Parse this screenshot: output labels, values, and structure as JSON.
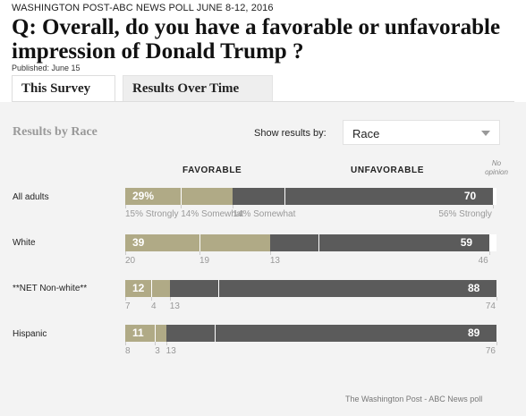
{
  "kicker": "WASHINGTON POST-ABC NEWS POLL JUNE 8-12, 2016",
  "headline": "Q: Overall, do you have a favorable or unfavorable impression of Donald Trump ?",
  "published": "Published: June 15",
  "tabs": [
    {
      "label": "This Survey",
      "active": true
    },
    {
      "label": "Results Over Time",
      "active": false
    }
  ],
  "results_title": "Results by Race",
  "show_results_label": "Show results by:",
  "select_value": "Race",
  "footer": "The Washington Post - ABC News poll",
  "colors": {
    "favorable": "#b0aa86",
    "unfavorable": "#5b5b5b",
    "no_opinion": "#ffffff"
  },
  "chart_data": {
    "type": "bar",
    "orientation": "horizontal-stacked",
    "headers": {
      "favorable": "FAVORABLE",
      "unfavorable": "UNFAVORABLE",
      "no_opinion": "No opinion"
    },
    "categories": [
      "All adults",
      "White",
      "**NET Non-white**",
      "Hispanic"
    ],
    "rows": [
      {
        "label": "All adults",
        "favorable": 29,
        "favorable_text": "29%",
        "fav_strongly": 15,
        "fav_somewhat": 14,
        "unfavorable": 70,
        "unfavorable_text": "70",
        "unf_somewhat": 14,
        "unf_strongly": 56,
        "no_opinion": 1,
        "sublabels": [
          "15% Strongly",
          "14% Somewhat",
          "14% Somewhat",
          "56% Strongly"
        ]
      },
      {
        "label": "White",
        "favorable": 39,
        "favorable_text": "39",
        "fav_strongly": 20,
        "fav_somewhat": 19,
        "unfavorable": 59,
        "unfavorable_text": "59",
        "unf_somewhat": 13,
        "unf_strongly": 46,
        "no_opinion": 2,
        "sublabels": [
          "20",
          "19",
          "13",
          "46"
        ]
      },
      {
        "label": "**NET Non-white**",
        "favorable": 12,
        "favorable_text": "12",
        "fav_strongly": 7,
        "fav_somewhat": 4,
        "unfavorable": 88,
        "unfavorable_text": "88",
        "unf_somewhat": 13,
        "unf_strongly": 74,
        "no_opinion": 1,
        "sublabels": [
          "7",
          "4",
          "13",
          "74"
        ]
      },
      {
        "label": "Hispanic",
        "favorable": 11,
        "favorable_text": "11",
        "fav_strongly": 8,
        "fav_somewhat": 3,
        "unfavorable": 89,
        "unfavorable_text": "89",
        "unf_somewhat": 13,
        "unf_strongly": 76,
        "no_opinion": 0,
        "sublabels": [
          "8",
          "3",
          "13",
          "76"
        ]
      }
    ]
  }
}
